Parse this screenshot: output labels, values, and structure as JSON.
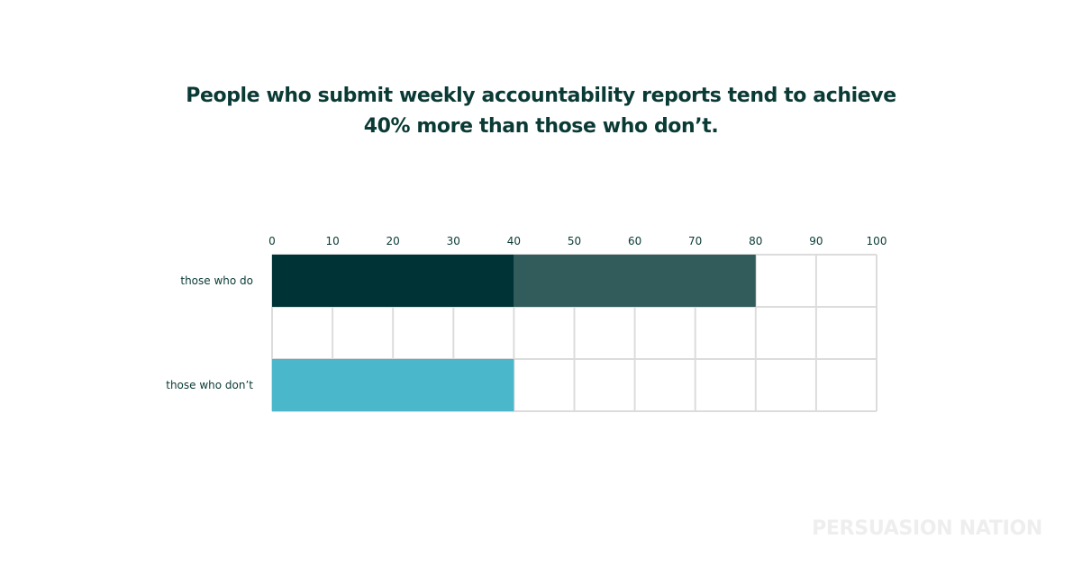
{
  "title_lines": [
    "People who submit weekly accountability reports tend to achieve",
    "40% more than those who don’t."
  ],
  "watermark": "PERSUASION NATION",
  "chart_data": {
    "type": "bar",
    "orientation": "horizontal",
    "title": "People who submit weekly accountability reports tend to achieve 40% more than those who don’t.",
    "categories": [
      "those who do",
      "",
      "those who don’t"
    ],
    "xlim": [
      0,
      100
    ],
    "x_ticks": [
      0,
      10,
      20,
      30,
      40,
      50,
      60,
      70,
      80,
      90,
      100
    ],
    "grid": true,
    "segments": [
      {
        "category": "those who do",
        "start": 0,
        "end": 40,
        "color": "#003336"
      },
      {
        "category": "those who do",
        "start": 40,
        "end": 80,
        "color": "#325c5b"
      },
      {
        "category": "those who don’t",
        "start": 0,
        "end": 40,
        "color": "#4ab7cb"
      }
    ]
  }
}
